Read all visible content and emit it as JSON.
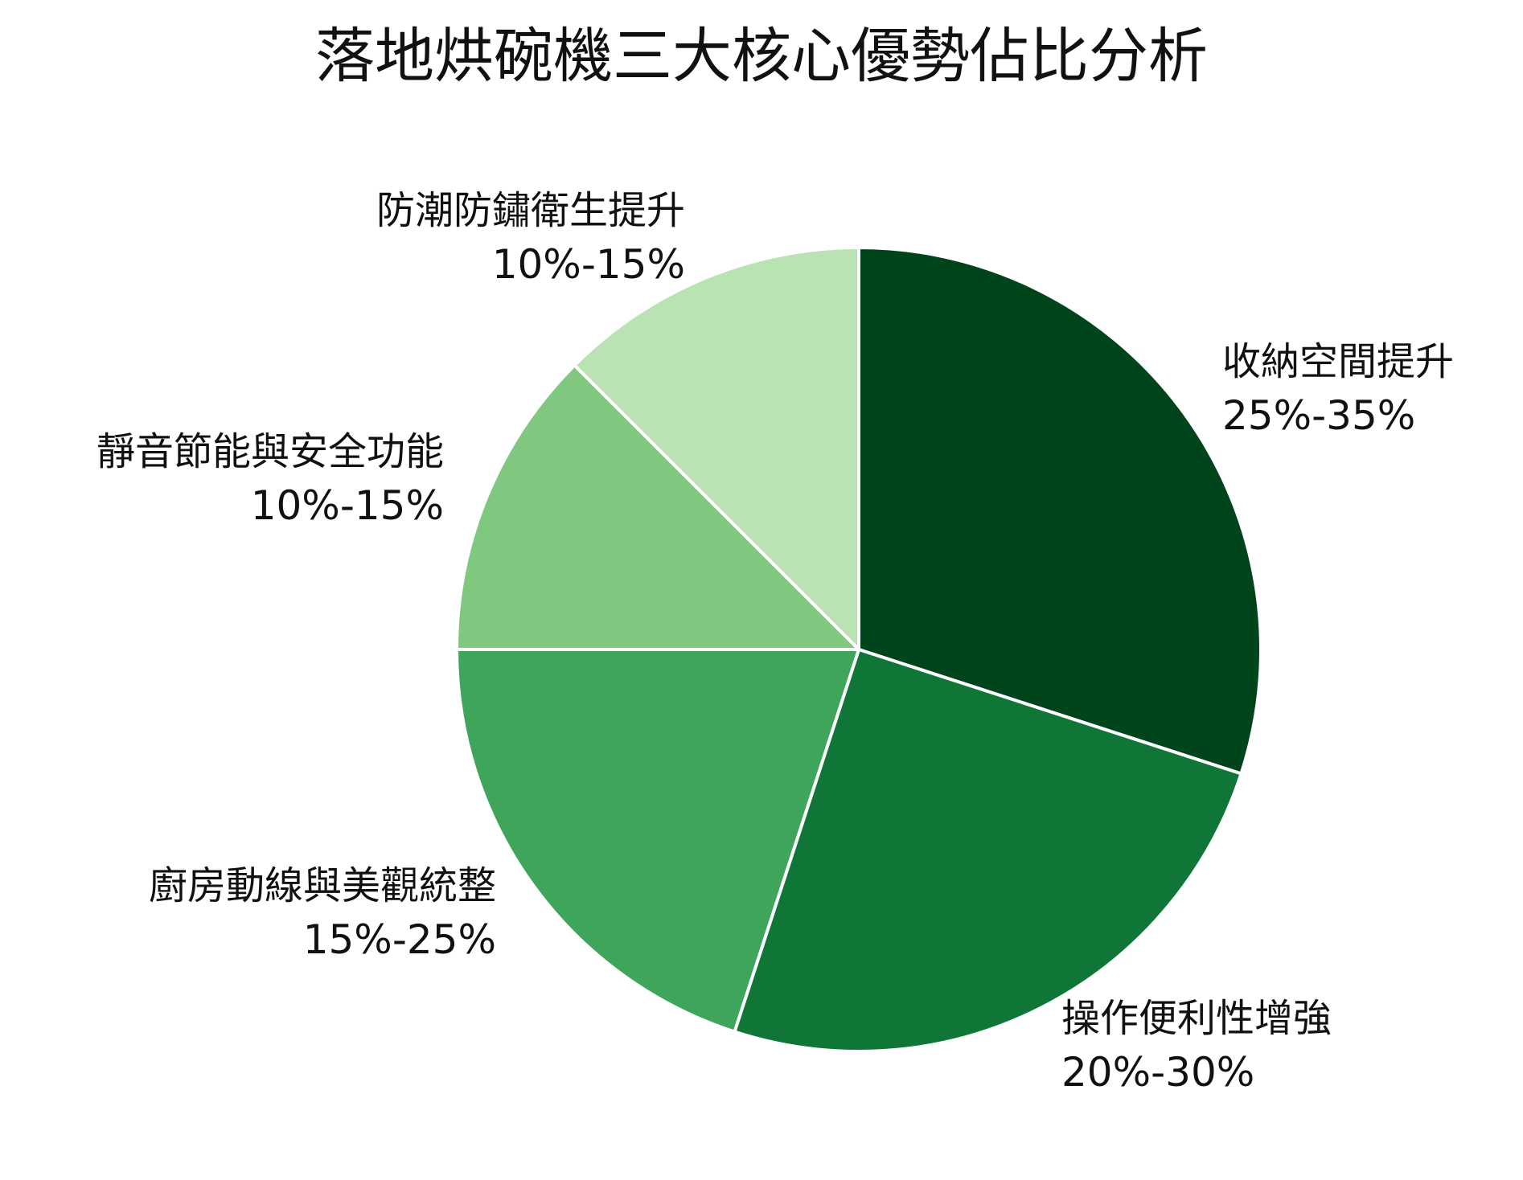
{
  "chart_data": {
    "type": "pie",
    "title": "落地烘碗機三大核心優勢佔比分析",
    "start_angle_deg": 0,
    "direction": "clockwise",
    "slices": [
      {
        "label": "收納空間提升",
        "range_text": "25%-35%",
        "value": 30,
        "color": "#00441b"
      },
      {
        "label": "操作便利性增強",
        "range_text": "20%-30%",
        "value": 25,
        "color": "#0f7637"
      },
      {
        "label": "廚房動線與美觀統整",
        "range_text": "15%-25%",
        "value": 20,
        "color": "#3ea55b"
      },
      {
        "label": "靜音節能與安全功能",
        "range_text": "10%-15%",
        "value": 12.5,
        "color": "#80c880"
      },
      {
        "label": "防潮防鏽衛生提升",
        "range_text": "10%-15%",
        "value": 12.5,
        "color": "#b9e3b3"
      }
    ],
    "slice_border_color": "#ffffff",
    "legend": "none"
  }
}
